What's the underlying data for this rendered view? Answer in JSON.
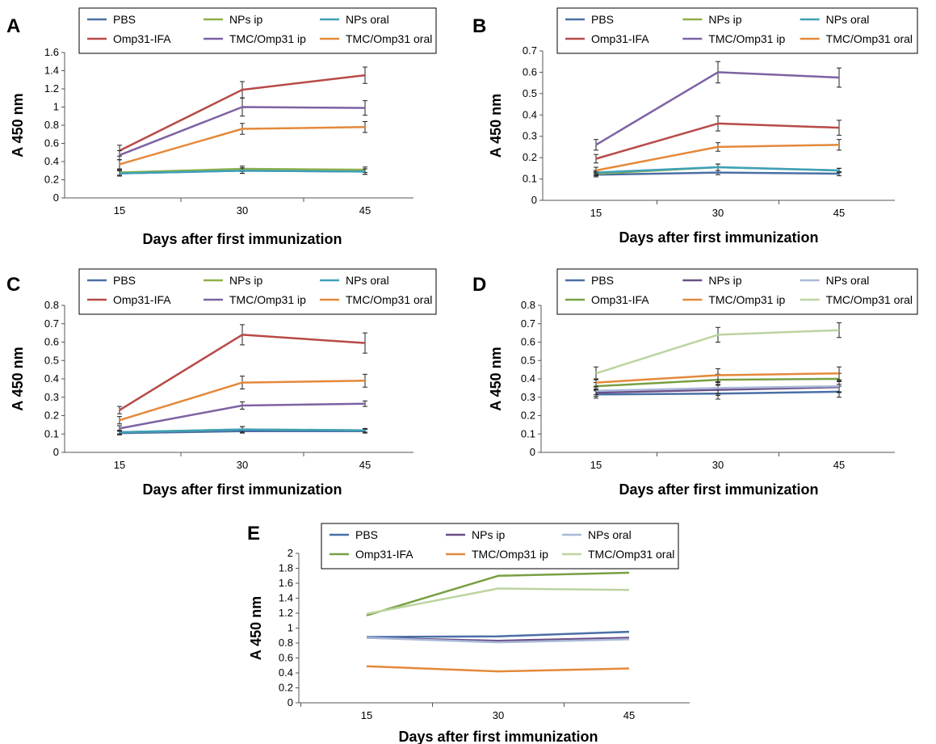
{
  "chart_data": [
    {
      "type": "line",
      "panel": "A",
      "x": [
        15,
        30,
        45
      ],
      "xlabel": "Days after first immunization",
      "ylabel": "A 450 nm",
      "ylim": [
        0,
        1.6
      ],
      "yticks": [
        0,
        0.2,
        0.4,
        0.6,
        0.8,
        1,
        1.2,
        1.4,
        1.6
      ],
      "legend": "top",
      "series": [
        {
          "name": "PBS",
          "color": "#4a6fa5",
          "values": [
            0.27,
            0.3,
            0.29
          ],
          "err": [
            0.03,
            0.03,
            0.03
          ]
        },
        {
          "name": "NPs ip",
          "color": "#8cb04a",
          "values": [
            0.28,
            0.32,
            0.31
          ],
          "err": [
            0.03,
            0.03,
            0.03
          ]
        },
        {
          "name": "NPs oral",
          "color": "#3ea0b8",
          "values": [
            0.27,
            0.3,
            0.29
          ],
          "err": [
            0.03,
            0.03,
            0.03
          ]
        },
        {
          "name": "Omp31-IFA",
          "color": "#b84a48",
          "values": [
            0.52,
            1.19,
            1.35
          ],
          "err": [
            0.06,
            0.09,
            0.09
          ]
        },
        {
          "name": "TMC/Omp31 ip",
          "color": "#7d62a3",
          "values": [
            0.47,
            1.0,
            0.99
          ],
          "err": [
            0.05,
            0.1,
            0.08
          ]
        },
        {
          "name": "TMC/Omp31 oral",
          "color": "#e4893a",
          "values": [
            0.37,
            0.76,
            0.78
          ],
          "err": [
            0.05,
            0.06,
            0.06
          ]
        }
      ]
    },
    {
      "type": "line",
      "panel": "B",
      "x": [
        15,
        30,
        45
      ],
      "xlabel": "Days after first immunization",
      "ylabel": "A 450 nm",
      "ylim": [
        0,
        0.7
      ],
      "yticks": [
        0,
        0.1,
        0.2,
        0.3,
        0.4,
        0.5,
        0.6,
        0.7
      ],
      "legend": "top",
      "series": [
        {
          "name": "PBS",
          "color": "#4a6fa5",
          "values": [
            0.12,
            0.13,
            0.125
          ],
          "err": [
            0.01,
            0.01,
            0.01
          ]
        },
        {
          "name": "NPs ip",
          "color": "#8cb04a",
          "values": [
            0.125,
            0.155,
            0.14
          ],
          "err": [
            0.01,
            0.015,
            0.01
          ]
        },
        {
          "name": "NPs oral",
          "color": "#3ea0b8",
          "values": [
            0.13,
            0.155,
            0.14
          ],
          "err": [
            0.01,
            0.015,
            0.01
          ]
        },
        {
          "name": "Omp31-IFA",
          "color": "#b84a48",
          "values": [
            0.195,
            0.36,
            0.34
          ],
          "err": [
            0.02,
            0.035,
            0.035
          ]
        },
        {
          "name": "TMC/Omp31 ip",
          "color": "#7d62a3",
          "values": [
            0.26,
            0.6,
            0.575
          ],
          "err": [
            0.025,
            0.05,
            0.045
          ]
        },
        {
          "name": "TMC/Omp31 oral",
          "color": "#e4893a",
          "values": [
            0.14,
            0.25,
            0.26
          ],
          "err": [
            0.015,
            0.02,
            0.025
          ]
        }
      ]
    },
    {
      "type": "line",
      "panel": "C",
      "x": [
        15,
        30,
        45
      ],
      "xlabel": "Days after first immunization",
      "ylabel": "A 450 nm",
      "ylim": [
        0,
        0.8
      ],
      "yticks": [
        0,
        0.1,
        0.2,
        0.3,
        0.4,
        0.5,
        0.6,
        0.7,
        0.8
      ],
      "legend": "top",
      "series": [
        {
          "name": "PBS",
          "color": "#4a6fa5",
          "values": [
            0.105,
            0.115,
            0.115
          ],
          "err": [
            0.01,
            0.01,
            0.01
          ]
        },
        {
          "name": "NPs ip",
          "color": "#8cb04a",
          "values": [
            0.11,
            0.125,
            0.12
          ],
          "err": [
            0.01,
            0.015,
            0.01
          ]
        },
        {
          "name": "NPs oral",
          "color": "#3ea0b8",
          "values": [
            0.11,
            0.125,
            0.12
          ],
          "err": [
            0.01,
            0.015,
            0.01
          ]
        },
        {
          "name": "Omp31-IFA",
          "color": "#b84a48",
          "values": [
            0.23,
            0.64,
            0.595
          ],
          "err": [
            0.02,
            0.055,
            0.055
          ]
        },
        {
          "name": "TMC/Omp31 ip",
          "color": "#7d62a3",
          "values": [
            0.13,
            0.255,
            0.265
          ],
          "err": [
            0.015,
            0.02,
            0.015
          ]
        },
        {
          "name": "TMC/Omp31 oral",
          "color": "#e4893a",
          "values": [
            0.175,
            0.38,
            0.39
          ],
          "err": [
            0.02,
            0.035,
            0.035
          ]
        }
      ]
    },
    {
      "type": "line",
      "panel": "D",
      "x": [
        15,
        30,
        45
      ],
      "xlabel": "Days after first immunization",
      "ylabel": "A 450 nm",
      "ylim": [
        0,
        0.8
      ],
      "yticks": [
        0,
        0.1,
        0.2,
        0.3,
        0.4,
        0.5,
        0.6,
        0.7,
        0.8
      ],
      "legend": "top",
      "series": [
        {
          "name": "PBS",
          "color": "#4a6fa5",
          "values": [
            0.315,
            0.32,
            0.33
          ],
          "err": [
            0.02,
            0.03,
            0.03
          ]
        },
        {
          "name": "NPs ip",
          "color": "#6b4f86",
          "values": [
            0.325,
            0.34,
            0.355
          ],
          "err": [
            0.02,
            0.03,
            0.03
          ]
        },
        {
          "name": "NPs oral",
          "color": "#a9b8d8",
          "values": [
            0.335,
            0.35,
            0.36
          ],
          "err": [
            0.02,
            0.03,
            0.03
          ]
        },
        {
          "name": "Omp31-IFA",
          "color": "#77a043",
          "values": [
            0.36,
            0.395,
            0.4
          ],
          "err": [
            0.02,
            0.03,
            0.03
          ]
        },
        {
          "name": "TMC/Omp31 ip",
          "color": "#e4893a",
          "values": [
            0.38,
            0.42,
            0.43
          ],
          "err": [
            0.02,
            0.035,
            0.035
          ]
        },
        {
          "name": "TMC/Omp31 oral",
          "color": "#bcd4a0",
          "values": [
            0.43,
            0.64,
            0.665
          ],
          "err": [
            0.035,
            0.04,
            0.04
          ]
        }
      ]
    },
    {
      "type": "line",
      "panel": "E",
      "x": [
        15,
        30,
        45
      ],
      "xlabel": "Days after first immunization",
      "ylabel": "A 450 nm",
      "ylim": [
        0,
        2
      ],
      "yticks": [
        0,
        0.2,
        0.4,
        0.6,
        0.8,
        1,
        1.2,
        1.4,
        1.6,
        1.8,
        2
      ],
      "legend": "top",
      "series": [
        {
          "name": "PBS",
          "color": "#4a6fa5",
          "values": [
            0.88,
            0.89,
            0.95
          ]
        },
        {
          "name": "NPs ip",
          "color": "#6b4f86",
          "values": [
            0.87,
            0.83,
            0.87
          ]
        },
        {
          "name": "NPs oral",
          "color": "#a9b8d8",
          "values": [
            0.87,
            0.81,
            0.85
          ]
        },
        {
          "name": "Omp31-IFA",
          "color": "#77a043",
          "values": [
            1.17,
            1.7,
            1.74
          ]
        },
        {
          "name": "TMC/Omp31 ip",
          "color": "#e4893a",
          "values": [
            0.49,
            0.42,
            0.46
          ]
        },
        {
          "name": "TMC/Omp31 oral",
          "color": "#bcd4a0",
          "values": [
            1.19,
            1.53,
            1.51
          ]
        }
      ]
    }
  ]
}
